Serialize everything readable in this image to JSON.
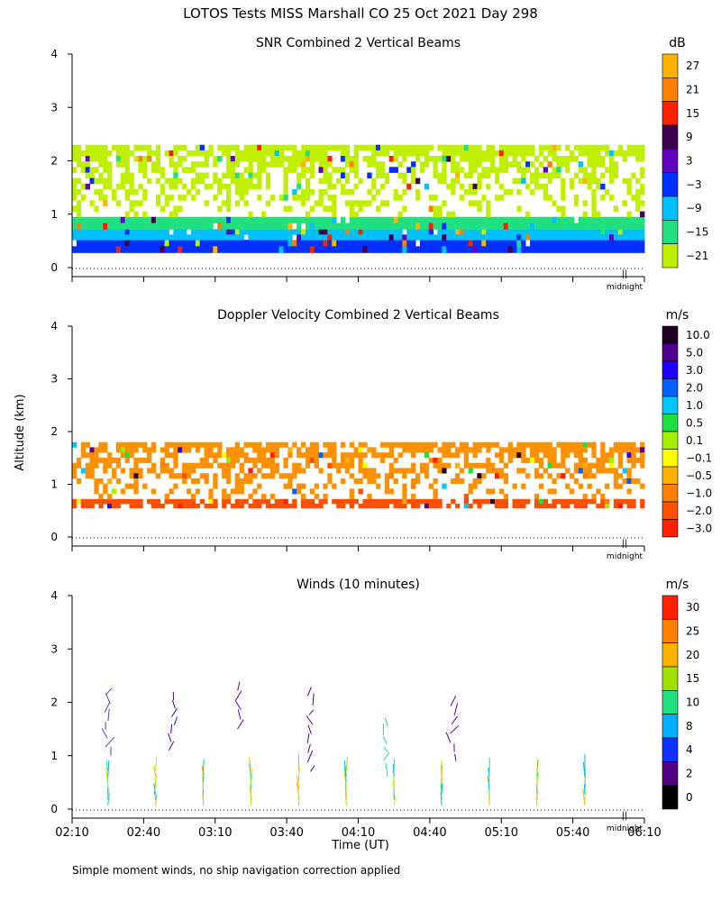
{
  "figure": {
    "title": "LOTOS Tests MISS Marshall CO  25 Oct 2021 Day 298",
    "ylabel": "Altitude (km)",
    "xlabel": "Time (UT)",
    "footnote": "Simple moment winds, no ship navigation correction applied",
    "midnight_label": "midnight",
    "midnight_marker": "||"
  },
  "chart_data": [
    {
      "type": "heatmap",
      "title": "SNR Combined 2 Vertical Beams",
      "units": "dB",
      "xlim": [
        130,
        370
      ],
      "ylim": [
        0,
        4
      ],
      "yticks": [
        "0",
        "1",
        "2",
        "3",
        "4"
      ],
      "colorbar_labels": [
        "27",
        "21",
        "15",
        "9",
        "3",
        "−3",
        "−9",
        "−15",
        "−21"
      ],
      "colorbar_colors": [
        "#ffb300",
        "#ff8000",
        "#ff2000",
        "#400050",
        "#6000c0",
        "#0030ff",
        "#00c0ff",
        "#20e080",
        "#c0f000"
      ],
      "layers": [
        {
          "alt_min": 0.28,
          "alt_max": 0.52,
          "color": "#0030ff"
        },
        {
          "alt_min": 0.52,
          "alt_max": 0.72,
          "color": "#00c0ff"
        },
        {
          "alt_min": 0.72,
          "alt_max": 0.95,
          "color": "#20e080"
        },
        {
          "alt_min": 0.95,
          "alt_max": 2.3,
          "color": "#c0f000"
        }
      ]
    },
    {
      "type": "heatmap",
      "title": "Doppler Velocity Combined 2 Vertical Beams",
      "units": "m/s",
      "xlim": [
        130,
        370
      ],
      "ylim": [
        0,
        4
      ],
      "yticks": [
        "0",
        "1",
        "2",
        "3",
        "4"
      ],
      "colorbar_labels": [
        "10.0",
        "5.0",
        "3.0",
        "2.0",
        "1.0",
        "0.5",
        "0.1",
        "−0.1",
        "−0.5",
        "−1.0",
        "−2.0",
        "−3.0"
      ],
      "colorbar_colors": [
        "#200020",
        "#500090",
        "#2000ff",
        "#0060ff",
        "#00c8ff",
        "#20e040",
        "#a0f000",
        "#ffff00",
        "#ffb000",
        "#ff8000",
        "#ff5000",
        "#ff2000"
      ],
      "layers": [
        {
          "alt_min": 0.55,
          "alt_max": 0.72,
          "color": "#ff5000"
        },
        {
          "alt_min": 0.72,
          "alt_max": 1.8,
          "color": "#ff9000"
        }
      ]
    },
    {
      "type": "wind_barbs",
      "title": "Winds (10 minutes)",
      "units": "m/s",
      "xlim": [
        130,
        370
      ],
      "ylim": [
        0,
        4
      ],
      "yticks": [
        "0",
        "1",
        "2",
        "3",
        "4"
      ],
      "xticks": [
        {
          "value": 130,
          "label": "02:10"
        },
        {
          "value": 160,
          "label": "02:40"
        },
        {
          "value": 190,
          "label": "03:10"
        },
        {
          "value": 220,
          "label": "03:40"
        },
        {
          "value": 250,
          "label": "04:10"
        },
        {
          "value": 280,
          "label": "04:40"
        },
        {
          "value": 310,
          "label": "05:10"
        },
        {
          "value": 340,
          "label": "05:40"
        },
        {
          "value": 370,
          "label": "06:10"
        }
      ],
      "colorbar_labels": [
        "30",
        "25",
        "20",
        "15",
        "10",
        "8",
        "4",
        "2",
        "0"
      ],
      "colorbar_colors": [
        "#ff2000",
        "#ff8000",
        "#ffb000",
        "#a0e000",
        "#20e080",
        "#00b0ff",
        "#1030ff",
        "#500080",
        "#000000"
      ],
      "profile_times": [
        145,
        165,
        185,
        205,
        225,
        245,
        265,
        285,
        305,
        325,
        345
      ],
      "lower_layer": {
        "alt_min": 0.0,
        "alt_max": 0.75
      },
      "upper_layer_profiles": [
        {
          "time": 145,
          "alt_min": 1.0,
          "alt_max": 2.3,
          "color": "#6040c0"
        },
        {
          "time": 172,
          "alt_min": 1.1,
          "alt_max": 2.2,
          "color": "#400080"
        },
        {
          "time": 200,
          "alt_min": 1.5,
          "alt_max": 2.4,
          "color": "#6000c0"
        },
        {
          "time": 230,
          "alt_min": 0.7,
          "alt_max": 2.3,
          "color": "#500090"
        },
        {
          "time": 262,
          "alt_min": 0.6,
          "alt_max": 1.7,
          "color": "#20e080"
        },
        {
          "time": 290,
          "alt_min": 0.9,
          "alt_max": 2.1,
          "color": "#500090"
        }
      ]
    }
  ]
}
